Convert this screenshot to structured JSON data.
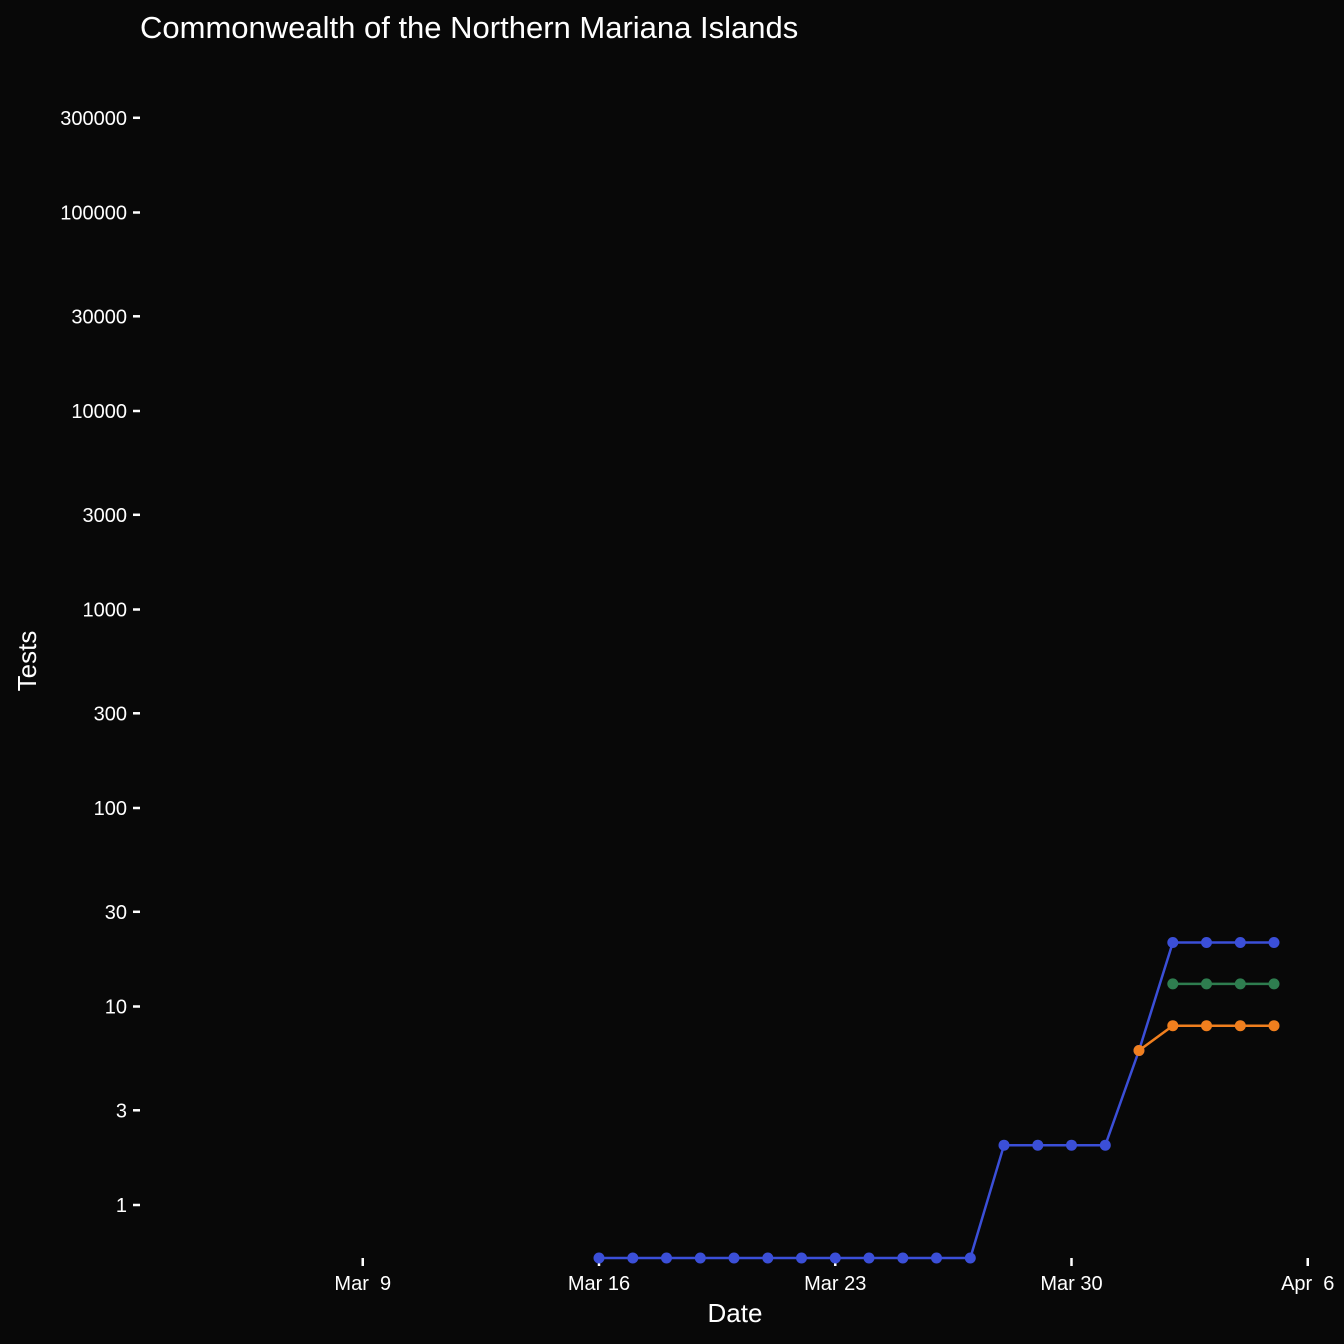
{
  "chart_data": {
    "type": "line",
    "title": "Commonwealth of the Northern Mariana Islands",
    "xlabel": "Date",
    "ylabel": "Tests",
    "y_scale": "log",
    "y_ticks": [
      1,
      3,
      10,
      30,
      100,
      300,
      1000,
      3000,
      10000,
      30000,
      100000,
      300000
    ],
    "y_tick_labels": [
      "1",
      "3",
      "10",
      "30",
      "100",
      "300",
      "1000",
      "3000",
      "10000",
      "30000",
      "100000",
      "300000"
    ],
    "x_ticks": [
      "2020-03-09",
      "2020-03-16",
      "2020-03-23",
      "2020-03-30",
      "2020-04-06"
    ],
    "x_tick_labels": [
      "Mar  9",
      "Mar 16",
      "Mar 23",
      "Mar 30",
      "Apr  6"
    ],
    "grid": false,
    "legend": "none",
    "series": [
      {
        "color": "#3b4fd8",
        "points": [
          [
            "2020-03-16",
            0
          ],
          [
            "2020-03-17",
            0
          ],
          [
            "2020-03-18",
            0
          ],
          [
            "2020-03-19",
            0
          ],
          [
            "2020-03-20",
            0
          ],
          [
            "2020-03-21",
            0
          ],
          [
            "2020-03-22",
            0
          ],
          [
            "2020-03-23",
            0
          ],
          [
            "2020-03-24",
            0
          ],
          [
            "2020-03-25",
            0
          ],
          [
            "2020-03-26",
            0
          ],
          [
            "2020-03-27",
            0
          ],
          [
            "2020-03-28",
            2
          ],
          [
            "2020-03-29",
            2
          ],
          [
            "2020-03-30",
            2
          ],
          [
            "2020-03-31",
            2
          ],
          [
            "2020-04-01",
            6
          ],
          [
            "2020-04-02",
            21
          ],
          [
            "2020-04-03",
            21
          ],
          [
            "2020-04-04",
            21
          ],
          [
            "2020-04-05",
            21
          ]
        ]
      },
      {
        "color": "#2e7d4f",
        "points": [
          [
            "2020-04-02",
            13
          ],
          [
            "2020-04-03",
            13
          ],
          [
            "2020-04-04",
            13
          ],
          [
            "2020-04-05",
            13
          ]
        ]
      },
      {
        "color": "#f07f1e",
        "points": [
          [
            "2020-04-01",
            6
          ],
          [
            "2020-04-02",
            8
          ],
          [
            "2020-04-03",
            8
          ],
          [
            "2020-04-04",
            8
          ],
          [
            "2020-04-05",
            8
          ]
        ]
      }
    ]
  }
}
